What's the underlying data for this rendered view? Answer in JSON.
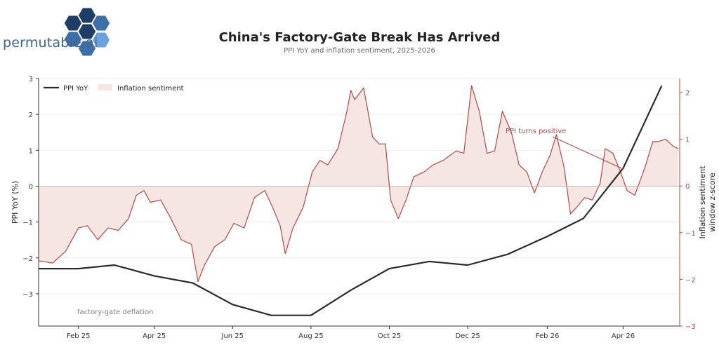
{
  "brand": {
    "logo_text": "permutable.ai"
  },
  "header": {
    "title": "China's Factory-Gate Break Has Arrived",
    "subtitle": "PPI YoY and inflation sentiment, 2025-2026"
  },
  "colors": {
    "ppi_line": "#2b2b2b",
    "sentiment_line": "#b5484a",
    "sentiment_fill": "#f5e6e4",
    "zero_line": "#bdbdbd",
    "grid": "#ececec",
    "right_axis": "#b5484a",
    "logo_dark": "#1f3e67",
    "logo_mid": "#3e6fa6",
    "logo_light": "#6aa2dd"
  },
  "chart_data": {
    "type": "line",
    "x_axis": {
      "tick_labels": [
        "Feb 25",
        "Apr 25",
        "Jun 25",
        "Aug 25",
        "Oct 25",
        "Dec 25",
        "Feb 26",
        "Apr 26"
      ],
      "range": [
        "2025-01-01",
        "2026-05-15"
      ]
    },
    "y_left": {
      "label": "PPI YoY (%)",
      "range": [
        -3.9,
        3.0
      ],
      "ticks": [
        3,
        2,
        1,
        0,
        -1,
        -2,
        -3
      ]
    },
    "y_right": {
      "label_line1": "Inflation sentiment",
      "label_line2": "window z-score",
      "range": [
        -3.0,
        2.3
      ],
      "ticks": [
        2,
        1,
        0,
        -1,
        -2,
        -3
      ]
    },
    "grid": "horizontal",
    "legend": {
      "position": "top-left",
      "items": [
        "PPI YoY",
        "Inflation sentiment"
      ]
    },
    "annotations": [
      {
        "text": "PPI turns positive",
        "points_to": {
          "date": "2026-04-01",
          "value": 0.4
        }
      },
      {
        "text": "factory-gate deflation"
      }
    ],
    "series": [
      {
        "name": "PPI YoY",
        "axis": "left",
        "points": [
          [
            "2025-01-01",
            -2.3
          ],
          [
            "2025-02-01",
            -2.3
          ],
          [
            "2025-03-01",
            -2.2
          ],
          [
            "2025-04-01",
            -2.5
          ],
          [
            "2025-05-01",
            -2.7
          ],
          [
            "2025-06-01",
            -3.3
          ],
          [
            "2025-07-01",
            -3.6
          ],
          [
            "2025-08-01",
            -3.6
          ],
          [
            "2025-09-01",
            -2.9
          ],
          [
            "2025-10-01",
            -2.3
          ],
          [
            "2025-11-01",
            -2.1
          ],
          [
            "2025-12-01",
            -2.2
          ],
          [
            "2026-01-01",
            -1.9
          ],
          [
            "2026-02-01",
            -1.4
          ],
          [
            "2026-03-01",
            -0.9
          ],
          [
            "2026-04-01",
            0.5
          ],
          [
            "2026-05-01",
            2.8
          ]
        ]
      },
      {
        "name": "Inflation sentiment",
        "axis": "right",
        "points": [
          [
            "2025-01-01",
            -1.6
          ],
          [
            "2025-01-12",
            -1.65
          ],
          [
            "2025-01-22",
            -1.4
          ],
          [
            "2025-02-01",
            -0.9
          ],
          [
            "2025-02-08",
            -0.85
          ],
          [
            "2025-02-16",
            -1.15
          ],
          [
            "2025-02-24",
            -0.9
          ],
          [
            "2025-03-04",
            -0.95
          ],
          [
            "2025-03-12",
            -0.7
          ],
          [
            "2025-03-18",
            -0.2
          ],
          [
            "2025-03-24",
            -0.1
          ],
          [
            "2025-03-29",
            -0.35
          ],
          [
            "2025-04-06",
            -0.3
          ],
          [
            "2025-04-14",
            -0.7
          ],
          [
            "2025-04-22",
            -1.15
          ],
          [
            "2025-04-30",
            -1.25
          ],
          [
            "2025-05-05",
            -2.05
          ],
          [
            "2025-05-10",
            -1.7
          ],
          [
            "2025-05-18",
            -1.3
          ],
          [
            "2025-05-26",
            -1.15
          ],
          [
            "2025-06-02",
            -0.8
          ],
          [
            "2025-06-10",
            -0.9
          ],
          [
            "2025-06-18",
            -0.25
          ],
          [
            "2025-06-26",
            -0.1
          ],
          [
            "2025-07-02",
            -0.45
          ],
          [
            "2025-07-08",
            -0.85
          ],
          [
            "2025-07-12",
            -1.45
          ],
          [
            "2025-07-18",
            -0.9
          ],
          [
            "2025-07-26",
            -0.45
          ],
          [
            "2025-08-02",
            0.3
          ],
          [
            "2025-08-08",
            0.55
          ],
          [
            "2025-08-14",
            0.45
          ],
          [
            "2025-08-22",
            0.8
          ],
          [
            "2025-08-29",
            1.6
          ],
          [
            "2025-09-01",
            2.05
          ],
          [
            "2025-09-04",
            1.85
          ],
          [
            "2025-09-11",
            2.1
          ],
          [
            "2025-09-18",
            1.05
          ],
          [
            "2025-09-23",
            0.9
          ],
          [
            "2025-09-28",
            0.9
          ],
          [
            "2025-10-02",
            -0.3
          ],
          [
            "2025-10-08",
            -0.7
          ],
          [
            "2025-10-14",
            -0.3
          ],
          [
            "2025-10-20",
            0.2
          ],
          [
            "2025-10-28",
            0.3
          ],
          [
            "2025-11-04",
            0.45
          ],
          [
            "2025-11-12",
            0.55
          ],
          [
            "2025-11-22",
            0.75
          ],
          [
            "2025-11-28",
            0.7
          ],
          [
            "2025-12-04",
            2.15
          ],
          [
            "2025-12-10",
            1.6
          ],
          [
            "2025-12-16",
            0.7
          ],
          [
            "2025-12-22",
            0.75
          ],
          [
            "2025-12-28",
            1.6
          ],
          [
            "2026-01-04",
            1.15
          ],
          [
            "2026-01-10",
            0.45
          ],
          [
            "2026-01-16",
            0.3
          ],
          [
            "2026-01-22",
            -0.15
          ],
          [
            "2026-01-28",
            0.3
          ],
          [
            "2026-02-03",
            0.65
          ],
          [
            "2026-02-08",
            1.1
          ],
          [
            "2026-02-14",
            0.4
          ],
          [
            "2026-02-19",
            -0.6
          ],
          [
            "2026-02-24",
            -0.45
          ],
          [
            "2026-03-02",
            -0.25
          ],
          [
            "2026-03-08",
            -0.3
          ],
          [
            "2026-03-14",
            0.05
          ],
          [
            "2026-03-18",
            0.8
          ],
          [
            "2026-03-24",
            0.7
          ],
          [
            "2026-03-30",
            0.3
          ],
          [
            "2026-04-04",
            -0.1
          ],
          [
            "2026-04-10",
            -0.2
          ],
          [
            "2026-04-18",
            0.4
          ],
          [
            "2026-04-24",
            0.95
          ],
          [
            "2026-04-28",
            0.95
          ],
          [
            "2026-05-04",
            1.0
          ],
          [
            "2026-05-10",
            0.85
          ],
          [
            "2026-05-14",
            0.8
          ]
        ]
      }
    ]
  }
}
